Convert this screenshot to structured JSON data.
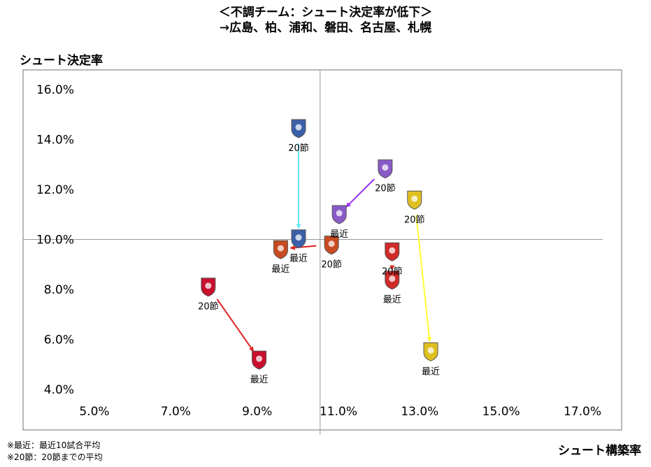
{
  "title_line1": "＜不調チーム：シュート決定率が低下＞",
  "title_line2": "→広島、柏、浦和、磐田、名古屋、札幌",
  "notes": [
    "※最近：最近10試合平均",
    "※20節：20節までの平均"
  ],
  "chart_data": {
    "type": "scatter",
    "xlabel": "シュート構築率",
    "ylabel": "シュート決定率",
    "xlim": [
      0.05,
      0.17
    ],
    "ylim": [
      0.04,
      0.16
    ],
    "xticks": [
      0.05,
      0.07,
      0.09,
      0.11,
      0.13,
      0.15,
      0.17
    ],
    "yticks": [
      0.04,
      0.06,
      0.08,
      0.1,
      0.12,
      0.14,
      0.16
    ],
    "xtick_labels": [
      "5.0%",
      "7.0%",
      "9.0%",
      "11.0%",
      "13.0%",
      "15.0%",
      "17.0%"
    ],
    "ytick_labels": [
      "4.0%",
      "6.0%",
      "8.0%",
      "10.0%",
      "12.0%",
      "14.0%",
      "16.0%"
    ],
    "reference_lines": {
      "x": 0.1055,
      "y": 0.1
    },
    "grid": false,
    "series": [
      {
        "color": "#66e6f0",
        "marker_color": "#3b5fa8",
        "from": {
          "x": 0.1002,
          "y": 0.1446,
          "label": "20節"
        },
        "to": {
          "x": 0.1002,
          "y": 0.1005,
          "label": "最近"
        }
      },
      {
        "color": "#9b30f0",
        "marker_color": "#8a5ac8",
        "from": {
          "x": 0.1215,
          "y": 0.1285,
          "label": "20節"
        },
        "to": {
          "x": 0.1102,
          "y": 0.1102,
          "label": "最近"
        }
      },
      {
        "color": "#ffff33",
        "marker_color": "#e0c020",
        "from": {
          "x": 0.1287,
          "y": 0.116,
          "label": "20節"
        },
        "to": {
          "x": 0.1327,
          "y": 0.0553,
          "label": "最近"
        }
      },
      {
        "color": "#e02020",
        "marker_color": "#d02a2a",
        "from": {
          "x": 0.1232,
          "y": 0.0953,
          "label": "20節"
        },
        "to": {
          "x": 0.1232,
          "y": 0.084,
          "label": "最近"
        }
      },
      {
        "color": "#e02020",
        "marker_color": "#c84a20",
        "from": {
          "x": 0.1083,
          "y": 0.098,
          "label": "20節"
        },
        "to": {
          "x": 0.0958,
          "y": 0.0962,
          "label": "最近"
        }
      },
      {
        "color": "#e02020",
        "marker_color": "#c8102e",
        "from": {
          "x": 0.078,
          "y": 0.0812,
          "label": "20節"
        },
        "to": {
          "x": 0.0905,
          "y": 0.052,
          "label": "最近"
        }
      }
    ]
  }
}
